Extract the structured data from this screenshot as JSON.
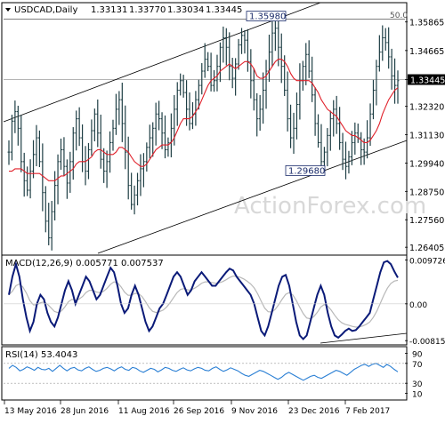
{
  "chart_data": {
    "type": "candlestick",
    "symbol": "USDCAD",
    "timeframe": "Daily",
    "header_label": "USDCAD,Daily",
    "ohlc": {
      "open": "1.33131",
      "high": "1.33770",
      "low": "1.33034",
      "close": "1.33445"
    },
    "watermark": "ActionForex.com",
    "last_price_label": "1.33445",
    "price_axis": {
      "ticks": [
        "1.35865",
        "1.34665",
        "1.33445",
        "1.32320",
        "1.31130",
        "1.29940",
        "1.28750",
        "1.27560",
        "1.26405"
      ],
      "range": [
        1.2615,
        1.366
      ]
    },
    "x_axis": {
      "labels": [
        "13 May 2016",
        "28 Jun 2016",
        "11 Aug 2016",
        "26 Sep 2016",
        "9 Nov 2016",
        "23 Dec 2016",
        "7 Feb 2017"
      ]
    },
    "annotations": {
      "high_label": "1.35980",
      "low_label": "1.29680",
      "fib_label": "50.0"
    },
    "price_series": {
      "description": "approximate daily closes read from chart",
      "close": [
        1.304,
        1.317,
        1.321,
        1.314,
        1.3,
        1.292,
        1.288,
        1.296,
        1.303,
        1.31,
        1.3,
        1.287,
        1.275,
        1.268,
        1.279,
        1.29,
        1.3,
        1.305,
        1.298,
        1.291,
        1.3,
        1.312,
        1.318,
        1.31,
        1.3,
        1.296,
        1.305,
        1.313,
        1.32,
        1.312,
        1.301,
        1.296,
        1.3,
        1.308,
        1.314,
        1.322,
        1.326,
        1.316,
        1.304,
        1.29,
        1.282,
        1.286,
        1.292,
        1.297,
        1.3,
        1.306,
        1.31,
        1.314,
        1.32,
        1.318,
        1.312,
        1.305,
        1.308,
        1.314,
        1.322,
        1.33,
        1.334,
        1.329,
        1.322,
        1.316,
        1.32,
        1.326,
        1.332,
        1.338,
        1.343,
        1.34,
        1.332,
        1.334,
        1.34,
        1.348,
        1.352,
        1.348,
        1.34,
        1.335,
        1.341,
        1.349,
        1.353,
        1.351,
        1.342,
        1.334,
        1.326,
        1.318,
        1.322,
        1.33,
        1.338,
        1.346,
        1.354,
        1.356,
        1.348,
        1.34,
        1.33,
        1.318,
        1.31,
        1.314,
        1.324,
        1.334,
        1.34,
        1.345,
        1.338,
        1.328,
        1.316,
        1.308,
        1.3,
        1.304,
        1.311,
        1.318,
        1.322,
        1.316,
        1.308,
        1.301,
        1.298,
        1.302,
        1.308,
        1.312,
        1.31,
        1.305,
        1.304,
        1.31,
        1.32,
        1.33,
        1.34,
        1.346,
        1.352,
        1.35,
        1.344,
        1.336,
        1.332,
        1.334
      ]
    },
    "ma_series": {
      "description": "moving average (red line) approx",
      "values": [
        1.296,
        1.296,
        1.297,
        1.297,
        1.297,
        1.296,
        1.295,
        1.295,
        1.295,
        1.295,
        1.295,
        1.294,
        1.293,
        1.292,
        1.292,
        1.292,
        1.293,
        1.294,
        1.294,
        1.295,
        1.296,
        1.297,
        1.299,
        1.3,
        1.3,
        1.3,
        1.301,
        1.302,
        1.304,
        1.305,
        1.305,
        1.304,
        1.303,
        1.303,
        1.303,
        1.304,
        1.306,
        1.306,
        1.305,
        1.304,
        1.302,
        1.3,
        1.299,
        1.298,
        1.298,
        1.299,
        1.301,
        1.303,
        1.305,
        1.306,
        1.307,
        1.307,
        1.307,
        1.308,
        1.31,
        1.313,
        1.316,
        1.318,
        1.318,
        1.318,
        1.319,
        1.321,
        1.323,
        1.326,
        1.329,
        1.332,
        1.334,
        1.335,
        1.336,
        1.338,
        1.339,
        1.34,
        1.341,
        1.34,
        1.339,
        1.34,
        1.341,
        1.342,
        1.342,
        1.341,
        1.339,
        1.336,
        1.335,
        1.335,
        1.336,
        1.338,
        1.34,
        1.342,
        1.343,
        1.343,
        1.342,
        1.34,
        1.337,
        1.335,
        1.334,
        1.334,
        1.334,
        1.334,
        1.334,
        1.333,
        1.331,
        1.329,
        1.326,
        1.324,
        1.322,
        1.321,
        1.32,
        1.319,
        1.317,
        1.315,
        1.313,
        1.312,
        1.311,
        1.311,
        1.31,
        1.309,
        1.308,
        1.308,
        1.309,
        1.311,
        1.313,
        1.316,
        1.32,
        1.323,
        1.326,
        1.328,
        1.33,
        1.331
      ]
    },
    "macd": {
      "header_label": "MACD(12,26,9) 0.005771 0.007537",
      "ticks": [
        "0.009726",
        "0.00",
        "-0.008153"
      ],
      "range": [
        -0.0087,
        0.0104
      ],
      "macd_line": [
        0.002,
        0.006,
        0.0088,
        0.006,
        0.001,
        -0.003,
        -0.006,
        -0.004,
        0.0,
        0.002,
        0.001,
        -0.002,
        -0.004,
        -0.005,
        -0.003,
        0.0,
        0.003,
        0.005,
        0.003,
        0.0,
        0.002,
        0.004,
        0.006,
        0.005,
        0.003,
        0.001,
        0.002,
        0.004,
        0.006,
        0.008,
        0.007,
        0.004,
        0.0,
        -0.002,
        -0.001,
        0.002,
        0.004,
        0.002,
        -0.001,
        -0.004,
        -0.006,
        -0.005,
        -0.003,
        -0.001,
        0.0,
        0.002,
        0.004,
        0.006,
        0.007,
        0.006,
        0.004,
        0.002,
        0.003,
        0.005,
        0.006,
        0.007,
        0.006,
        0.005,
        0.004,
        0.004,
        0.005,
        0.006,
        0.007,
        0.0078,
        0.0074,
        0.006,
        0.005,
        0.004,
        0.003,
        0.002,
        0.0,
        -0.003,
        -0.006,
        -0.007,
        -0.005,
        -0.002,
        0.001,
        0.004,
        0.006,
        0.0064,
        0.004,
        0.0,
        -0.004,
        -0.007,
        -0.0078,
        -0.007,
        -0.004,
        -0.001,
        0.002,
        0.004,
        0.002,
        -0.002,
        -0.005,
        -0.007,
        -0.0075,
        -0.0068,
        -0.006,
        -0.0055,
        -0.006,
        -0.0058,
        -0.005,
        -0.004,
        -0.003,
        -0.002,
        0.001,
        0.004,
        0.007,
        0.0092,
        0.0095,
        0.0088,
        0.0072,
        0.0058
      ]
    },
    "rsi": {
      "header_label": "RSI(14) 53.4043",
      "ticks": [
        "90",
        "70",
        "30",
        "10"
      ],
      "range": [
        0,
        100
      ],
      "values": [
        60,
        66,
        62,
        55,
        58,
        63,
        60,
        56,
        62,
        58,
        57,
        60,
        54,
        60,
        66,
        60,
        55,
        60,
        62,
        57,
        55,
        60,
        63,
        58,
        54,
        56,
        60,
        62,
        59,
        55,
        60,
        63,
        58,
        56,
        62,
        60,
        55,
        52,
        56,
        60,
        58,
        53,
        57,
        62,
        60,
        56,
        54,
        58,
        61,
        57,
        55,
        59,
        62,
        60,
        56,
        55,
        60,
        63,
        58,
        54,
        57,
        61,
        58,
        55,
        50,
        46,
        44,
        48,
        52,
        56,
        54,
        50,
        46,
        42,
        38,
        42,
        48,
        52,
        48,
        44,
        40,
        36,
        40,
        44,
        46,
        42,
        40,
        44,
        48,
        52,
        56,
        54,
        50,
        46,
        52,
        58,
        62,
        66,
        68,
        64,
        68,
        70,
        66,
        62,
        68,
        64,
        58,
        53
      ]
    }
  }
}
